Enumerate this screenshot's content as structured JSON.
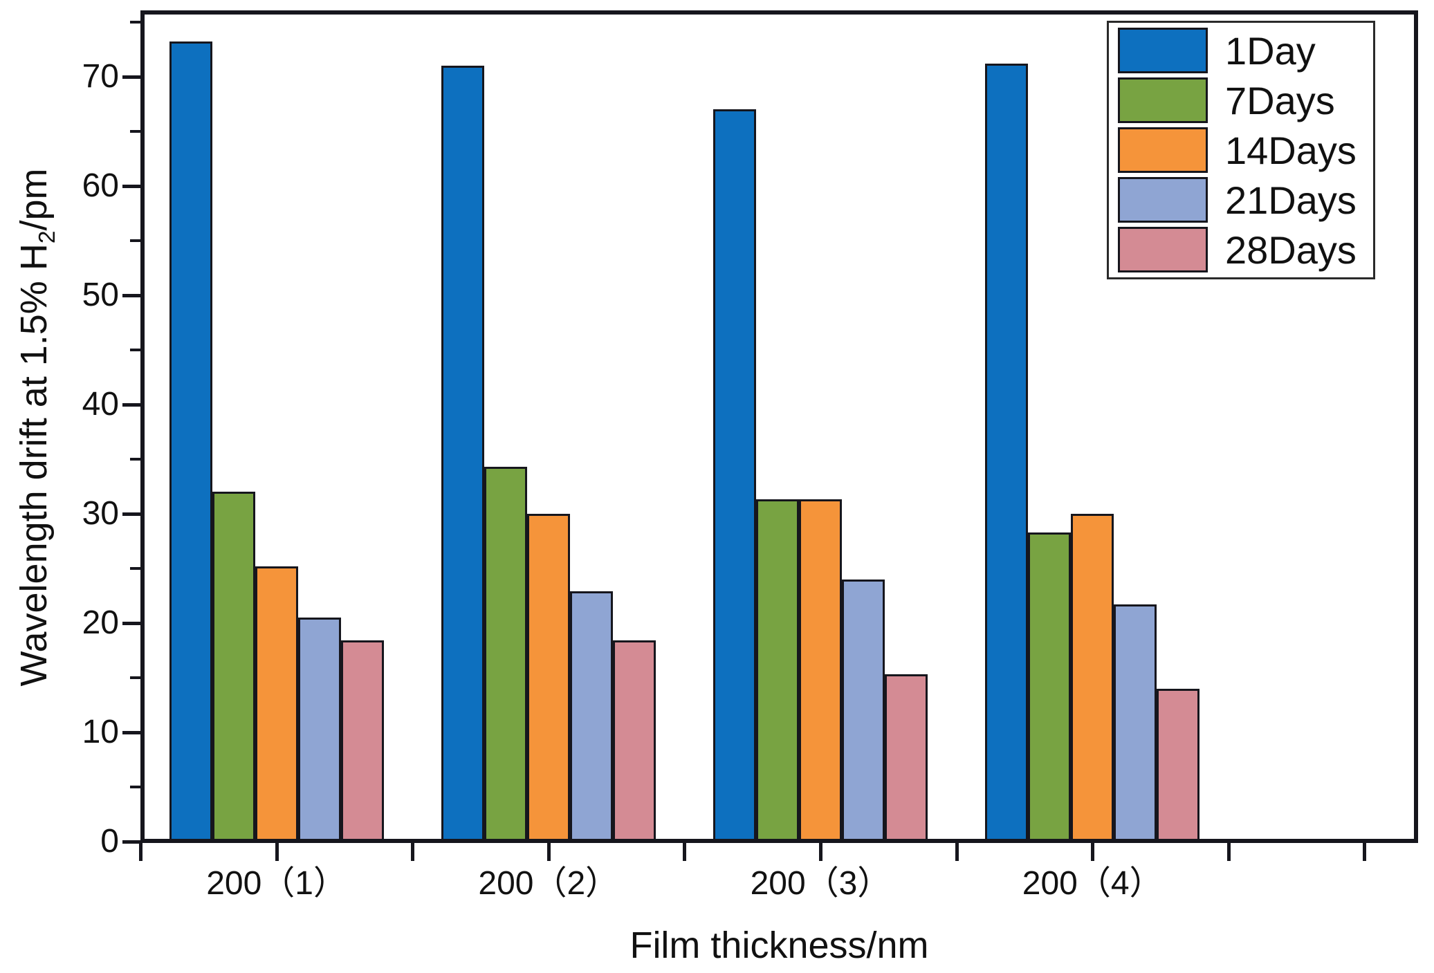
{
  "chart_data": {
    "type": "bar",
    "title": "",
    "xlabel": "Film thickness/nm",
    "ylabel": "Wavelength drift at 1.5% H2/pm",
    "ylabel_parts": {
      "pre": "Wavelength drift at 1.5% H",
      "sub": "2",
      "suf": "/pm"
    },
    "categories": [
      "200（1）",
      "200（2）",
      "200（3）",
      "200（4）"
    ],
    "series": [
      {
        "name": "1Day",
        "color": "#0d70bf",
        "values": [
          73.2,
          71.0,
          67.0,
          71.2
        ]
      },
      {
        "name": "7Days",
        "color": "#78a342",
        "values": [
          32.0,
          34.3,
          31.3,
          28.3
        ]
      },
      {
        "name": "14Days",
        "color": "#f5943a",
        "values": [
          25.2,
          30.0,
          31.3,
          30.0
        ]
      },
      {
        "name": "21Days",
        "color": "#8fa5d3",
        "values": [
          20.5,
          22.9,
          24.0,
          21.7
        ]
      },
      {
        "name": "28Days",
        "color": "#d48b94",
        "values": [
          18.4,
          18.4,
          15.3,
          14.0
        ]
      }
    ],
    "ylim": [
      0,
      76
    ],
    "yticks_major": [
      0,
      10,
      20,
      30,
      40,
      50,
      60,
      70
    ],
    "yticks_minor": [
      5,
      15,
      25,
      35,
      45,
      55,
      65,
      75
    ],
    "grid": false,
    "legend": {
      "position": "top-right",
      "entries": [
        "1Day",
        "7Days",
        "14Days",
        "21Days",
        "28Days"
      ]
    },
    "axis_color": "#16161d"
  }
}
